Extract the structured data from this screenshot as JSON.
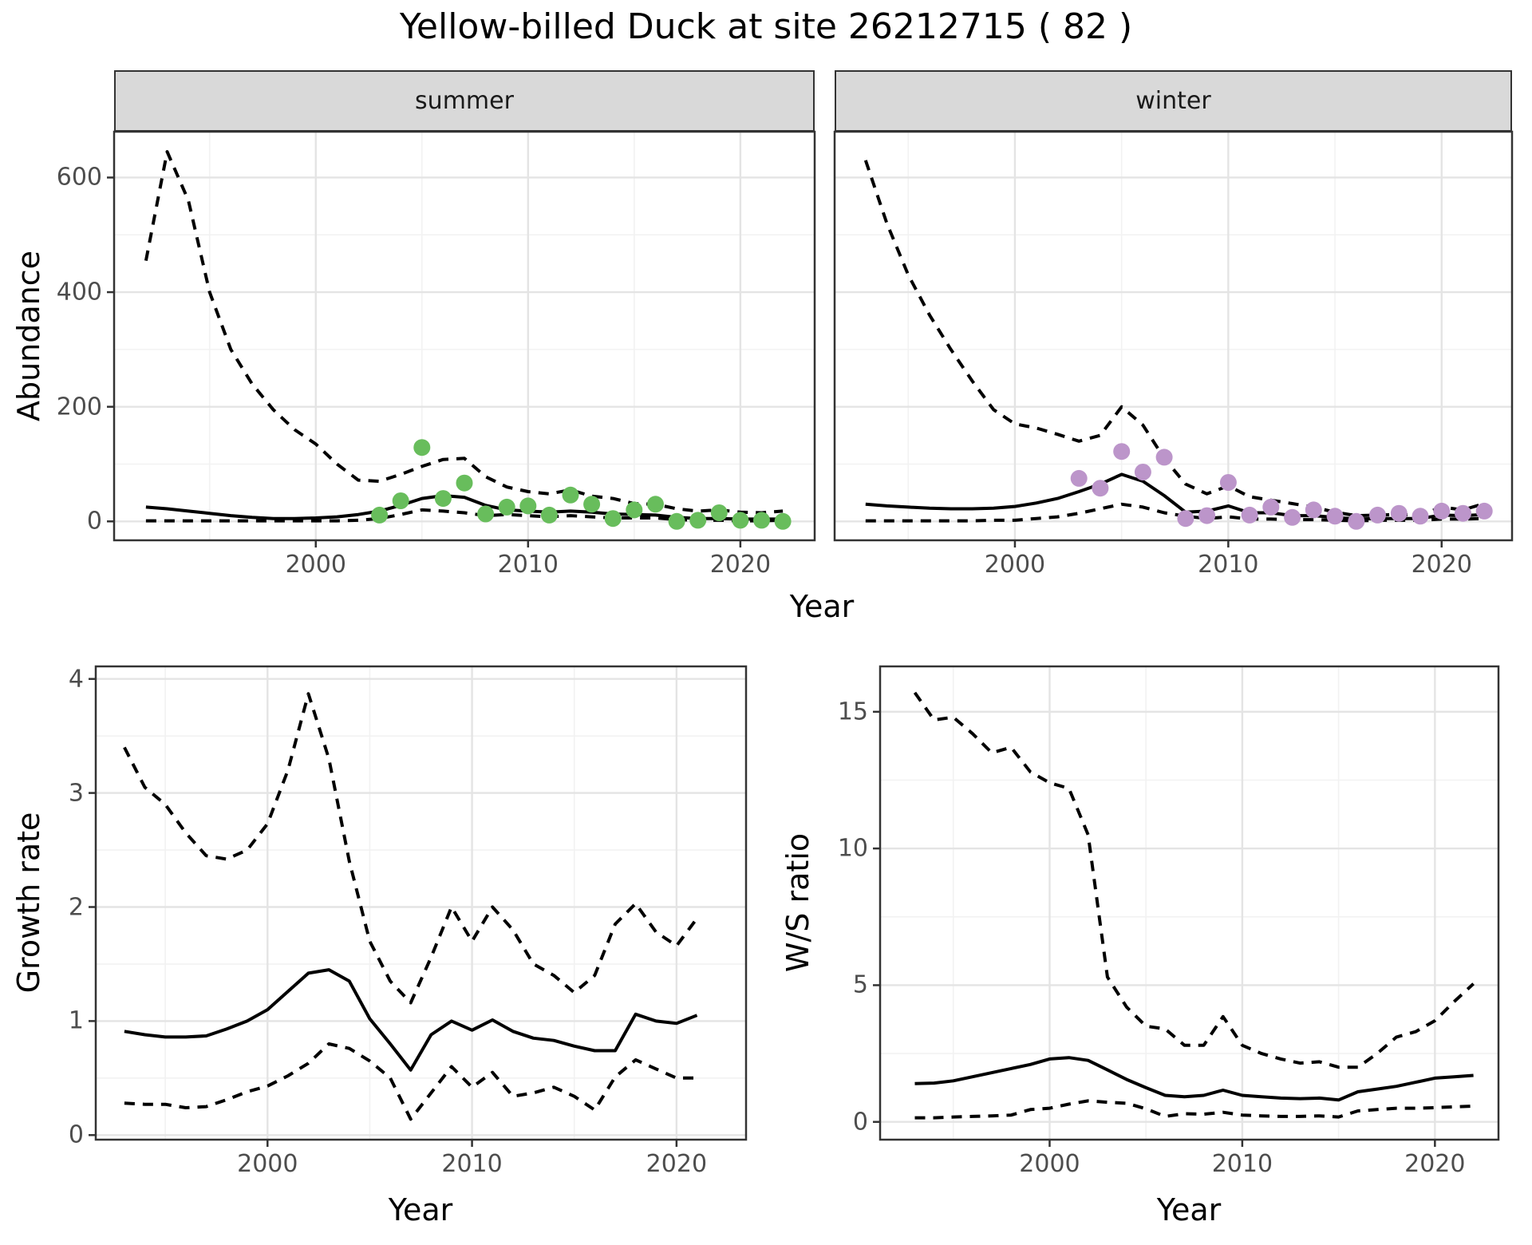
{
  "page": {
    "title": "Yellow-billed Duck at site 26212715 ( 82 )"
  },
  "figure": {
    "facets": [
      {
        "id": "summer",
        "label": "summer"
      },
      {
        "id": "winter",
        "label": "winter"
      }
    ],
    "axis_titles": {
      "abundance": "Abundance",
      "year_top": "Year",
      "growth_rate": "Growth rate",
      "year_growth": "Year",
      "ws_ratio": "W/S ratio",
      "year_ws": "Year"
    }
  },
  "colors": {
    "summer_point": "#68BD5C",
    "winter_point": "#BC95CA",
    "line": "#000000",
    "grid_major": "#E4E4E4",
    "grid_minor": "#F2F2F2",
    "strip_bg": "#D9D9D9",
    "panel_border": "#333333",
    "tick_text": "#4D4D4D"
  },
  "chart_data": [
    {
      "id": "abundance-summer",
      "type": "line",
      "title": "summer",
      "xlabel": "Year",
      "ylabel": "Abundance",
      "xlim": [
        1990.5,
        2023.5
      ],
      "ylim": [
        -33,
        680
      ],
      "xticks": [
        2000,
        2010,
        2020
      ],
      "xminor": [
        1995,
        2005,
        2015
      ],
      "yticks": [
        0,
        200,
        400,
        600
      ],
      "yminor": [
        100,
        300,
        500
      ],
      "x": [
        1992,
        1993,
        1994,
        1995,
        1996,
        1997,
        1998,
        1999,
        2000,
        2001,
        2002,
        2003,
        2004,
        2005,
        2006,
        2007,
        2008,
        2009,
        2010,
        2011,
        2012,
        2013,
        2014,
        2015,
        2016,
        2017,
        2018,
        2019,
        2020,
        2021,
        2022
      ],
      "series": [
        {
          "name": "upper-95ci",
          "style": "dashed",
          "values": [
            455,
            645,
            560,
            400,
            300,
            240,
            195,
            160,
            135,
            100,
            72,
            70,
            82,
            96,
            108,
            110,
            78,
            60,
            52,
            48,
            55,
            44,
            40,
            31,
            30,
            22,
            18,
            20,
            16,
            15,
            18
          ]
        },
        {
          "name": "model-estimate",
          "style": "solid",
          "values": [
            25,
            22,
            18,
            14,
            10,
            7,
            5,
            5,
            6,
            8,
            12,
            18,
            28,
            40,
            45,
            42,
            28,
            20,
            18,
            16,
            18,
            16,
            13,
            12,
            11,
            7,
            5,
            5,
            4,
            4,
            4
          ]
        },
        {
          "name": "lower-95ci",
          "style": "dashed",
          "values": [
            1,
            1,
            1,
            1,
            1,
            1,
            1,
            1,
            1,
            1,
            2,
            5,
            12,
            20,
            18,
            15,
            10,
            12,
            10,
            8,
            10,
            8,
            6,
            6,
            6,
            3,
            2,
            2,
            1,
            1,
            2
          ]
        }
      ],
      "points": {
        "name": "observed-count-summer",
        "color_key": "summer_point",
        "x": [
          2003,
          2004,
          2005,
          2006,
          2007,
          2008,
          2009,
          2010,
          2011,
          2012,
          2013,
          2014,
          2015,
          2016,
          2017,
          2018,
          2019,
          2020,
          2021,
          2022
        ],
        "y": [
          11,
          36,
          129,
          40,
          67,
          13,
          25,
          27,
          11,
          46,
          30,
          5,
          20,
          30,
          0,
          2,
          15,
          2,
          2,
          0
        ]
      }
    },
    {
      "id": "abundance-winter",
      "type": "line",
      "title": "winter",
      "xlabel": "Year",
      "ylabel": "Abundance",
      "xlim": [
        1991.55,
        2023.3
      ],
      "ylim": [
        -33,
        680
      ],
      "xticks": [
        2000,
        2010,
        2020
      ],
      "xminor": [
        1995,
        2005,
        2015
      ],
      "yticks": [
        0,
        200,
        400,
        600
      ],
      "yminor": [
        100,
        300,
        500
      ],
      "x": [
        1993,
        1994,
        1995,
        1996,
        1997,
        1998,
        1999,
        2000,
        2001,
        2002,
        2003,
        2004,
        2005,
        2006,
        2007,
        2008,
        2009,
        2010,
        2011,
        2012,
        2013,
        2014,
        2015,
        2016,
        2017,
        2018,
        2019,
        2020,
        2021,
        2022
      ],
      "series": [
        {
          "name": "upper-95ci",
          "style": "dashed",
          "values": [
            630,
            520,
            430,
            360,
            300,
            245,
            195,
            170,
            163,
            152,
            140,
            150,
            200,
            168,
            110,
            65,
            48,
            62,
            43,
            37,
            31,
            25,
            16,
            10,
            11,
            12,
            11,
            25,
            20,
            31
          ]
        },
        {
          "name": "model-estimate",
          "style": "solid",
          "values": [
            30,
            27,
            25,
            23,
            22,
            22,
            23,
            26,
            32,
            40,
            52,
            65,
            82,
            70,
            45,
            16,
            18,
            27,
            15,
            15,
            10,
            10,
            7,
            4,
            5,
            5,
            5,
            11,
            10,
            12
          ]
        },
        {
          "name": "lower-95ci",
          "style": "dashed",
          "values": [
            1,
            1,
            1,
            1,
            1,
            1,
            2,
            2,
            5,
            8,
            14,
            22,
            30,
            25,
            15,
            9,
            5,
            8,
            4,
            4,
            3,
            3,
            2,
            1,
            2,
            2,
            2,
            4,
            4,
            5
          ]
        }
      ],
      "points": {
        "name": "observed-count-winter",
        "color_key": "winter_point",
        "x": [
          2003,
          2004,
          2005,
          2006,
          2007,
          2008,
          2009,
          2010,
          2011,
          2012,
          2013,
          2014,
          2015,
          2016,
          2017,
          2018,
          2019,
          2020,
          2021,
          2022
        ],
        "y": [
          75,
          58,
          122,
          86,
          112,
          5,
          10,
          68,
          11,
          25,
          7,
          20,
          9,
          0,
          11,
          14,
          9,
          18,
          14,
          18
        ]
      }
    },
    {
      "id": "growth-rate",
      "type": "line",
      "title": "",
      "xlabel": "Year",
      "ylabel": "Growth rate",
      "xlim": [
        1991.6,
        2023.4
      ],
      "ylim": [
        -0.04,
        4.11
      ],
      "xticks": [
        2000,
        2010,
        2020
      ],
      "xminor": [
        1995,
        2005,
        2015
      ],
      "yticks": [
        0,
        1,
        2,
        3,
        4
      ],
      "yminor": [
        0.5,
        1.5,
        2.5,
        3.5
      ],
      "x": [
        1993,
        1994,
        1995,
        1996,
        1997,
        1998,
        1999,
        2000,
        2001,
        2002,
        2003,
        2004,
        2005,
        2006,
        2007,
        2008,
        2009,
        2010,
        2011,
        2012,
        2013,
        2014,
        2015,
        2016,
        2017,
        2018,
        2019,
        2020,
        2021
      ],
      "series": [
        {
          "name": "upper-95ci",
          "style": "dashed",
          "values": [
            3.4,
            3.05,
            2.9,
            2.65,
            2.45,
            2.42,
            2.5,
            2.73,
            3.2,
            3.87,
            3.3,
            2.4,
            1.7,
            1.35,
            1.16,
            1.56,
            2.0,
            1.7,
            2.0,
            1.8,
            1.5,
            1.4,
            1.25,
            1.4,
            1.85,
            2.03,
            1.78,
            1.66,
            1.9
          ]
        },
        {
          "name": "model-estimate",
          "style": "solid",
          "values": [
            0.91,
            0.88,
            0.86,
            0.86,
            0.87,
            0.93,
            1.0,
            1.1,
            1.26,
            1.42,
            1.45,
            1.35,
            1.02,
            0.8,
            0.57,
            0.88,
            1.0,
            0.92,
            1.01,
            0.91,
            0.85,
            0.83,
            0.78,
            0.74,
            0.74,
            1.06,
            1.0,
            0.98,
            1.05
          ]
        },
        {
          "name": "lower-95ci",
          "style": "dashed",
          "values": [
            0.28,
            0.27,
            0.27,
            0.24,
            0.25,
            0.31,
            0.38,
            0.43,
            0.52,
            0.63,
            0.8,
            0.76,
            0.65,
            0.5,
            0.14,
            0.37,
            0.6,
            0.42,
            0.55,
            0.34,
            0.37,
            0.42,
            0.34,
            0.22,
            0.51,
            0.66,
            0.58,
            0.5,
            0.5
          ]
        }
      ]
    },
    {
      "id": "ws-ratio",
      "type": "line",
      "title": "",
      "xlabel": "Year",
      "ylabel": "W/S ratio",
      "xlim": [
        1991.2,
        2023.3
      ],
      "ylim": [
        -0.65,
        16.66
      ],
      "xticks": [
        2000,
        2010,
        2020
      ],
      "xminor": [
        1995,
        2005,
        2015
      ],
      "yticks": [
        0,
        5,
        10,
        15
      ],
      "yminor": [
        2.5,
        7.5,
        12.5
      ],
      "x": [
        1993,
        1994,
        1995,
        1996,
        1997,
        1998,
        1999,
        2000,
        2001,
        2002,
        2003,
        2004,
        2005,
        2006,
        2007,
        2008,
        2009,
        2010,
        2011,
        2012,
        2013,
        2014,
        2015,
        2016,
        2017,
        2018,
        2019,
        2020,
        2021,
        2022
      ],
      "series": [
        {
          "name": "upper-95ci",
          "style": "dashed",
          "values": [
            15.7,
            14.7,
            14.8,
            14.2,
            13.5,
            13.7,
            12.8,
            12.4,
            12.2,
            10.5,
            5.3,
            4.2,
            3.5,
            3.4,
            2.8,
            2.8,
            3.85,
            2.8,
            2.5,
            2.3,
            2.15,
            2.2,
            2.0,
            2.0,
            2.5,
            3.1,
            3.3,
            3.7,
            4.4,
            5.05
          ]
        },
        {
          "name": "model-estimate",
          "style": "solid",
          "values": [
            1.4,
            1.42,
            1.5,
            1.65,
            1.8,
            1.95,
            2.1,
            2.3,
            2.35,
            2.25,
            1.9,
            1.55,
            1.25,
            0.97,
            0.92,
            0.97,
            1.16,
            0.97,
            0.92,
            0.87,
            0.85,
            0.87,
            0.8,
            1.1,
            1.2,
            1.3,
            1.45,
            1.6,
            1.65,
            1.7
          ]
        },
        {
          "name": "lower-95ci",
          "style": "dashed",
          "values": [
            0.15,
            0.15,
            0.18,
            0.2,
            0.22,
            0.25,
            0.45,
            0.5,
            0.65,
            0.77,
            0.72,
            0.68,
            0.48,
            0.2,
            0.3,
            0.28,
            0.35,
            0.25,
            0.22,
            0.2,
            0.2,
            0.22,
            0.18,
            0.4,
            0.45,
            0.5,
            0.5,
            0.52,
            0.55,
            0.58
          ]
        }
      ]
    }
  ]
}
